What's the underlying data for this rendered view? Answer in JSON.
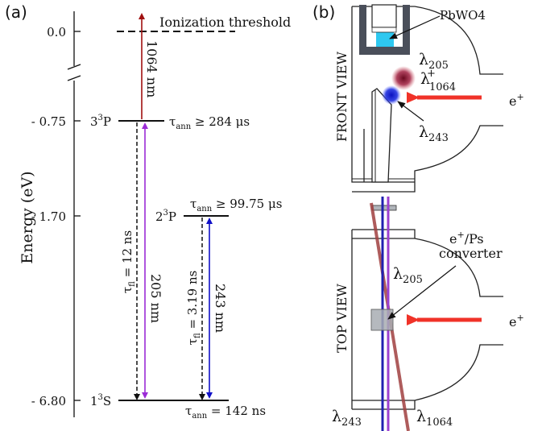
{
  "panel_a": {
    "label": "(a)",
    "axis_label": "Energy (eV)",
    "ticks": [
      {
        "value": 0.0,
        "label": "0.0"
      },
      {
        "value": -0.75,
        "label": "- 0.75"
      },
      {
        "value": -1.7,
        "label": "- 1.70"
      },
      {
        "value": -6.8,
        "label": "- 6.80"
      }
    ],
    "levels": {
      "ionization": {
        "label": "Ionization threshold"
      },
      "l3p": {
        "name": "3",
        "sup": "3",
        "letter": "P",
        "tau_sym": "τ",
        "tau_sub": "ann",
        "tau_val": " ≥ 284 μs"
      },
      "l2p": {
        "name": "2",
        "sup": "3",
        "letter": "P",
        "tau_sym": "τ",
        "tau_sub": "ann",
        "tau_val": " ≥ 99.75 μs"
      },
      "l1s": {
        "name": "1",
        "sup": "3",
        "letter": "S",
        "tau_sym": "τ",
        "tau_sub": "ann",
        "tau_val": " = 142 ns"
      }
    },
    "transitions": {
      "t1064": {
        "label": "1064 nm",
        "color": "#a01010"
      },
      "t205": {
        "label": "205 nm",
        "color": "#9b2bd6"
      },
      "t243": {
        "label": "243 nm",
        "color": "#1010c8"
      },
      "tfl12": {
        "sym": "τ",
        "sub": "fl",
        "val": " = 12 ns"
      },
      "tfl319": {
        "sym": "τ",
        "sub": "fl",
        "val": " = 3.19 ns"
      }
    }
  },
  "panel_b": {
    "label": "(b)",
    "front_view": "FRONT VIEW",
    "top_view": "TOP VIEW",
    "detector": {
      "text": "PbWO",
      "sub": "4"
    },
    "lambda_sym": "λ",
    "front_labels": {
      "l205": "205",
      "l1064_sub": "1064",
      "l1064_sup": "+",
      "l243": "243",
      "positron": "e",
      "positron_sup": "+"
    },
    "top_labels": {
      "converter_line1_a": "e",
      "converter_line1_sup": "+",
      "converter_line1_b": "/Ps",
      "converter_line2": "converter",
      "l205": "205",
      "positron": "e",
      "positron_sup": "+",
      "l243": "243",
      "l1064": "1064"
    },
    "colors": {
      "detector_cyan": "#2ec8f0",
      "housing": "#4a4f5a",
      "laser_red": "#f03228",
      "beam_blue": "#2020b0",
      "beam_violet": "#9b3fd0",
      "beam_brown": "#a04040",
      "converter_gray": "#a8adb3"
    }
  }
}
